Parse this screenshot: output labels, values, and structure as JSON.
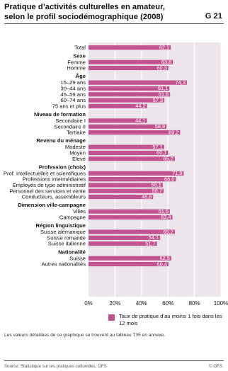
{
  "title_line1": "Pratique d’activités culturelles en amateur,",
  "title_line2": "selon le profil sociodémographique (2008)",
  "chart_id": "G 21",
  "legend_label": "Taux de pratique d’au moins 1 fois dans les 12 mois",
  "note": "Les valeurs détaillées de ce graphique se trouvent au tableau T35 en annexe.",
  "source": "Source: Statistique sur les pratiques culturelles, OFS",
  "copyright": "© OFS",
  "colors": {
    "bar": "#c2538e",
    "bg": "#ece5ec",
    "grid": "#ffffff"
  },
  "chart_data": {
    "type": "bar",
    "orientation": "horizontal",
    "xlim": [
      0,
      100
    ],
    "xticks": [
      "0%",
      "20%",
      "40%",
      "60%",
      "80%",
      "100%"
    ],
    "grid": true,
    "legend_position": "bottom",
    "groups": [
      {
        "name": "",
        "items": [
          {
            "label": "Total",
            "value": 62.1,
            "display": "62,1"
          }
        ]
      },
      {
        "name": "Sexe",
        "items": [
          {
            "label": "Femme",
            "value": 63.8,
            "display": "63,8"
          },
          {
            "label": "Homme",
            "value": 60.3,
            "display": "60,3"
          }
        ]
      },
      {
        "name": "Âge",
        "items": [
          {
            "label": "15–29 ans",
            "value": 74.3,
            "display": "74,3"
          },
          {
            "label": "30–44 ans",
            "value": 61.1,
            "display": "61,1"
          },
          {
            "label": "45–59 ans",
            "value": 61.6,
            "display": "61,6"
          },
          {
            "label": "60–74 ans",
            "value": 57.3,
            "display": "57,3"
          },
          {
            "label": "75 ans et plus",
            "value": 44.2,
            "display": "44,2"
          }
        ]
      },
      {
        "name": "Niveau de formation",
        "items": [
          {
            "label": "Secondaire I",
            "value": 44.1,
            "display": "44,1"
          },
          {
            "label": "Secondaire II",
            "value": 58.9,
            "display": "58,9"
          },
          {
            "label": "Tertiaire",
            "value": 69.2,
            "display": "69,2"
          }
        ]
      },
      {
        "name": "Revenu du ménage",
        "items": [
          {
            "label": "Modeste",
            "value": 57.1,
            "display": "57,1"
          },
          {
            "label": "Moyen",
            "value": 60.1,
            "display": "60,1"
          },
          {
            "label": "Elevé",
            "value": 65.2,
            "display": "65,2"
          }
        ]
      },
      {
        "name": "Profession (choix)",
        "items": [
          {
            "label": "Prof. intellectuelles et scientifiques",
            "value": 71.9,
            "display": "71,9"
          },
          {
            "label": "Professions intermédiaires",
            "value": 66.0,
            "display": "66,0"
          },
          {
            "label": "Employés de type administratif",
            "value": 56.1,
            "display": "56,1"
          },
          {
            "label": "Personnel des services et vente",
            "value": 56.7,
            "display": "56,7"
          },
          {
            "label": "Conducteurs, assembleurs",
            "value": 48.8,
            "display": "48,8"
          }
        ]
      },
      {
        "name": "Dimension ville-campagne",
        "items": [
          {
            "label": "Villes",
            "value": 61.5,
            "display": "61,5"
          },
          {
            "label": "Campagne",
            "value": 63.4,
            "display": "63,4"
          }
        ]
      },
      {
        "name": "Région linguistique",
        "items": [
          {
            "label": "Suisse alémanique",
            "value": 65.2,
            "display": "65,2"
          },
          {
            "label": "Suisse romande",
            "value": 54.1,
            "display": "54,1"
          },
          {
            "label": "Suisse italienne",
            "value": 51.7,
            "display": "51,7"
          }
        ]
      },
      {
        "name": "Nationalité",
        "items": [
          {
            "label": "Suisse",
            "value": 62.5,
            "display": "62,5"
          },
          {
            "label": "Autres nationalités",
            "value": 60.4,
            "display": "60,4"
          }
        ]
      }
    ]
  }
}
